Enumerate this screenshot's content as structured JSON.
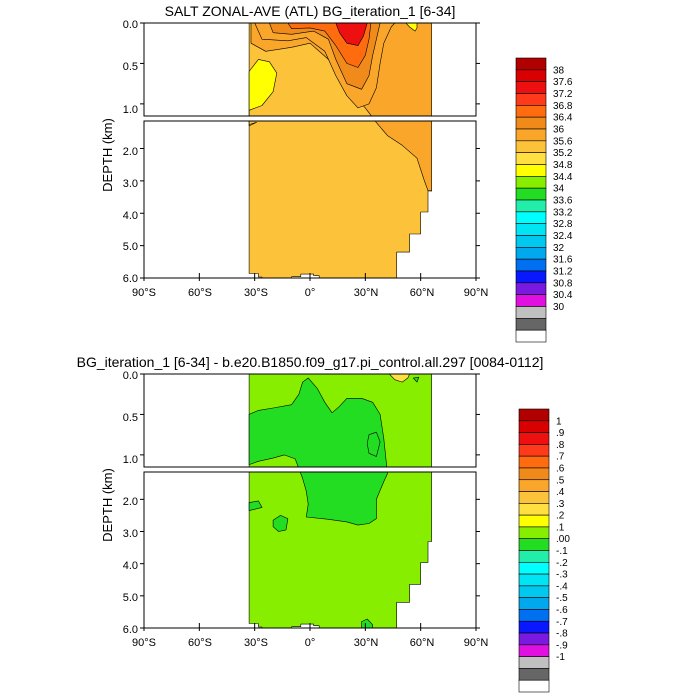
{
  "chart_data": [
    {
      "type": "heatmap",
      "title": "SALT ZONAL-AVE (ATL) BG_iteration_1 [6-34]",
      "ylabel": "DEPTH (km)",
      "xticks": [
        "90°S",
        "60°S",
        "30°S",
        "0°",
        "30°N",
        "60°N",
        "90°N"
      ],
      "yticks_upper": [
        "0.0",
        "0.5",
        "1.0"
      ],
      "yticks_lower": [
        "2.0",
        "3.0",
        "4.0",
        "5.0",
        "6.0"
      ],
      "xlim": [
        -90,
        90
      ],
      "ylim": [
        0,
        6
      ],
      "colorbar_labels": [
        "38",
        "37.6",
        "37.2",
        "36.8",
        "36.4",
        "36",
        "35.6",
        "35.2",
        "34.8",
        "34.4",
        "34",
        "33.6",
        "33.2",
        "32.8",
        "32.4",
        "32",
        "31.6",
        "31.2",
        "30.8",
        "30.4",
        "30"
      ],
      "colorbar_colors": [
        "#b00000",
        "#d80000",
        "#ee1010",
        "#ff3a1a",
        "#ff6c10",
        "#f08a1a",
        "#f9a62a",
        "#fcc23a",
        "#ffe040",
        "#ffff00",
        "#88ee00",
        "#22dd22",
        "#22eeaa",
        "#00ffff",
        "#00e4f4",
        "#00c8ee",
        "#00a8ee",
        "#0070f0",
        "#0a18ff",
        "#7a1ae0",
        "#e010e0",
        "#c0c0c0",
        "#666666",
        "#ffffff"
      ],
      "regions": [
        {
          "value": 35.2,
          "poly": [
            [
              -33,
              0
            ],
            [
              -33,
              5.86
            ],
            [
              -28,
              5.86
            ],
            [
              -28,
              5.97
            ],
            [
              -26,
              5.97
            ],
            [
              -26,
              6.35
            ],
            [
              -10,
              6.35
            ],
            [
              -10,
              5.96
            ],
            [
              -5,
              5.96
            ],
            [
              -5,
              5.88
            ],
            [
              2,
              5.88
            ],
            [
              2,
              5.93
            ],
            [
              5,
              5.93
            ],
            [
              5,
              6.35
            ],
            [
              33,
              6.35
            ],
            [
              33,
              6.2
            ],
            [
              47,
              6.2
            ],
            [
              47,
              5.2
            ],
            [
              54,
              5.2
            ],
            [
              54,
              4.64
            ],
            [
              60,
              4.64
            ],
            [
              60,
              3.96
            ],
            [
              64,
              3.96
            ],
            [
              64,
              3.31
            ],
            [
              66,
              3.31
            ],
            [
              66,
              0
            ],
            [
              -33,
              0
            ]
          ]
        },
        {
          "value": 34.6,
          "poly": [
            [
              -33,
              0.6
            ],
            [
              -28,
              0.45
            ],
            [
              -22,
              0.48
            ],
            [
              -18,
              0.62
            ],
            [
              -20,
              0.85
            ],
            [
              -26,
              1.02
            ],
            [
              -33,
              1.08
            ],
            [
              -33,
              1.26
            ],
            [
              -29,
              1.19
            ],
            [
              -33,
              1.3
            ]
          ]
        },
        {
          "value": 35.6,
          "poly": [
            [
              -32,
              0
            ],
            [
              -32,
              0.25
            ],
            [
              -24,
              0.35
            ],
            [
              -10,
              0.3
            ],
            [
              0,
              0.25
            ],
            [
              10,
              0.45
            ],
            [
              20,
              0.8
            ],
            [
              30,
              1.05
            ],
            [
              36,
              1.2
            ],
            [
              42,
              1.6
            ],
            [
              50,
              1.9
            ],
            [
              58,
              2.3
            ],
            [
              62,
              3.0
            ],
            [
              64,
              3.3
            ],
            [
              66,
              3.31
            ],
            [
              66,
              0
            ],
            [
              -32,
              0
            ]
          ]
        },
        {
          "value": 35.9,
          "poly": [
            [
              -30,
              0
            ],
            [
              -26,
              0.2
            ],
            [
              -12,
              0.22
            ],
            [
              -2,
              0.18
            ],
            [
              8,
              0.35
            ],
            [
              14,
              0.65
            ],
            [
              20,
              0.9
            ],
            [
              26,
              1.05
            ],
            [
              32,
              1.0
            ],
            [
              36,
              0.8
            ],
            [
              38,
              0.5
            ],
            [
              40,
              0.25
            ],
            [
              44,
              0.05
            ],
            [
              46,
              0
            ]
          ]
        },
        {
          "value": 36.3,
          "poly": [
            [
              -22,
              0
            ],
            [
              -20,
              0.12
            ],
            [
              -10,
              0.14
            ],
            [
              2,
              0.1
            ],
            [
              10,
              0.2
            ],
            [
              14,
              0.45
            ],
            [
              20,
              0.75
            ],
            [
              28,
              0.82
            ],
            [
              32,
              0.65
            ],
            [
              34,
              0.4
            ],
            [
              36,
              0.2
            ],
            [
              38,
              0
            ]
          ]
        },
        {
          "value": 36.7,
          "poly": [
            [
              -12,
              0
            ],
            [
              -10,
              0.07
            ],
            [
              0,
              0.06
            ],
            [
              8,
              0.1
            ],
            [
              14,
              0.28
            ],
            [
              20,
              0.5
            ],
            [
              26,
              0.55
            ],
            [
              30,
              0.4
            ],
            [
              32,
              0.2
            ],
            [
              33,
              0
            ]
          ]
        },
        {
          "value": 37.3,
          "poly": [
            [
              14,
              0
            ],
            [
              16,
              0.12
            ],
            [
              20,
              0.25
            ],
            [
              26,
              0.28
            ],
            [
              29,
              0.16
            ],
            [
              31,
              0
            ]
          ]
        },
        {
          "value": 34.6,
          "poly": [
            [
              52,
              0
            ],
            [
              54,
              0.05
            ],
            [
              57,
              0.1
            ],
            [
              58,
              0.06
            ],
            [
              58,
              0
            ]
          ]
        }
      ]
    },
    {
      "type": "heatmap",
      "title": "BG_iteration_1 [6-34] - b.e20.B1850.f09_g17.pi_control.all.297 [0084-0112]",
      "ylabel": "DEPTH (km)",
      "xticks": [
        "90°S",
        "60°S",
        "30°S",
        "0°",
        "30°N",
        "60°N",
        "90°N"
      ],
      "yticks_upper": [
        "0.0",
        "0.5",
        "1.0"
      ],
      "yticks_lower": [
        "2.0",
        "3.0",
        "4.0",
        "5.0",
        "6.0"
      ],
      "xlim": [
        -90,
        90
      ],
      "ylim": [
        0,
        6
      ],
      "colorbar_labels": [
        "1",
        ".9",
        ".8",
        ".7",
        ".6",
        ".5",
        ".4",
        ".3",
        ".2",
        ".1",
        ".00",
        "-.1",
        "-.2",
        "-.3",
        "-.4",
        "-.5",
        "-.6",
        "-.7",
        "-.8",
        "-.9",
        "-1"
      ],
      "colorbar_colors": [
        "#b00000",
        "#d80000",
        "#ee1010",
        "#ff3a1a",
        "#ff6c10",
        "#f08a1a",
        "#f9a62a",
        "#fcc23a",
        "#ffe040",
        "#ffff00",
        "#88ee00",
        "#22dd22",
        "#22eeaa",
        "#00ffff",
        "#00e4f4",
        "#00c8ee",
        "#00a8ee",
        "#0070f0",
        "#0a18ff",
        "#7a1ae0",
        "#e010e0",
        "#c0c0c0",
        "#666666",
        "#ffffff"
      ],
      "regions": [
        {
          "value": 0.05,
          "poly": [
            [
              -33,
              0
            ],
            [
              -33,
              5.86
            ],
            [
              -28,
              5.86
            ],
            [
              -28,
              5.97
            ],
            [
              -26,
              5.97
            ],
            [
              -26,
              6.35
            ],
            [
              -10,
              6.35
            ],
            [
              -10,
              5.96
            ],
            [
              -5,
              5.96
            ],
            [
              -5,
              5.88
            ],
            [
              2,
              5.88
            ],
            [
              2,
              5.93
            ],
            [
              5,
              5.93
            ],
            [
              5,
              6.35
            ],
            [
              33,
              6.35
            ],
            [
              33,
              6.2
            ],
            [
              47,
              6.2
            ],
            [
              47,
              5.2
            ],
            [
              54,
              5.2
            ],
            [
              54,
              4.64
            ],
            [
              60,
              4.64
            ],
            [
              60,
              3.96
            ],
            [
              64,
              3.96
            ],
            [
              64,
              3.31
            ],
            [
              66,
              3.31
            ],
            [
              66,
              0
            ],
            [
              -33,
              0
            ]
          ]
        },
        {
          "value": -0.05,
          "poly": [
            [
              -33,
              0.5
            ],
            [
              -28,
              0.45
            ],
            [
              -20,
              0.42
            ],
            [
              -10,
              0.38
            ],
            [
              -6,
              0.25
            ],
            [
              -4,
              0.1
            ],
            [
              -1,
              0.05
            ],
            [
              4,
              0.18
            ],
            [
              8,
              0.35
            ],
            [
              12,
              0.48
            ],
            [
              16,
              0.4
            ],
            [
              20,
              0.3
            ],
            [
              28,
              0.3
            ],
            [
              34,
              0.35
            ],
            [
              38,
              0.5
            ],
            [
              40,
              0.8
            ],
            [
              42,
              1.2
            ],
            [
              40,
              1.45
            ],
            [
              36,
              2.0
            ],
            [
              36,
              2.6
            ],
            [
              32,
              2.75
            ],
            [
              26,
              2.8
            ],
            [
              20,
              2.7
            ],
            [
              10,
              2.62
            ],
            [
              -2,
              2.55
            ],
            [
              -1,
              2.15
            ],
            [
              -2,
              1.75
            ],
            [
              -4,
              1.35
            ],
            [
              -8,
              1.05
            ],
            [
              -14,
              1.0
            ],
            [
              -20,
              1.04
            ],
            [
              -28,
              1.08
            ],
            [
              -33,
              1.12
            ]
          ]
        },
        {
          "value": -0.05,
          "poly": [
            [
              32,
              0.75
            ],
            [
              36,
              0.72
            ],
            [
              38,
              0.84
            ],
            [
              36,
              1.02
            ],
            [
              32,
              0.98
            ],
            [
              31,
              0.86
            ]
          ]
        },
        {
          "value": -0.05,
          "poly": [
            [
              -20,
              2.65
            ],
            [
              -16,
              2.5
            ],
            [
              -12,
              2.6
            ],
            [
              -13,
              2.95
            ],
            [
              -17,
              3.0
            ],
            [
              -20,
              2.85
            ]
          ]
        },
        {
          "value": -0.05,
          "poly": [
            [
              -33,
              2.1
            ],
            [
              -28,
              2.05
            ],
            [
              -26,
              2.25
            ],
            [
              -33,
              2.35
            ]
          ]
        },
        {
          "value": -0.05,
          "poly": [
            [
              28,
              5.8
            ],
            [
              31,
              5.72
            ],
            [
              34,
              5.9
            ],
            [
              33,
              6.3
            ],
            [
              30,
              6.35
            ],
            [
              28,
              6.1
            ]
          ]
        },
        {
          "value": 0.25,
          "poly": [
            [
              43,
              0
            ],
            [
              46,
              0.07
            ],
            [
              50,
              0.1
            ],
            [
              53,
              0.05
            ],
            [
              54,
              0
            ]
          ]
        },
        {
          "value": -0.05,
          "poly": [
            [
              56,
              0.05
            ],
            [
              58,
              0.1
            ],
            [
              59,
              0.04
            ]
          ]
        }
      ]
    }
  ]
}
